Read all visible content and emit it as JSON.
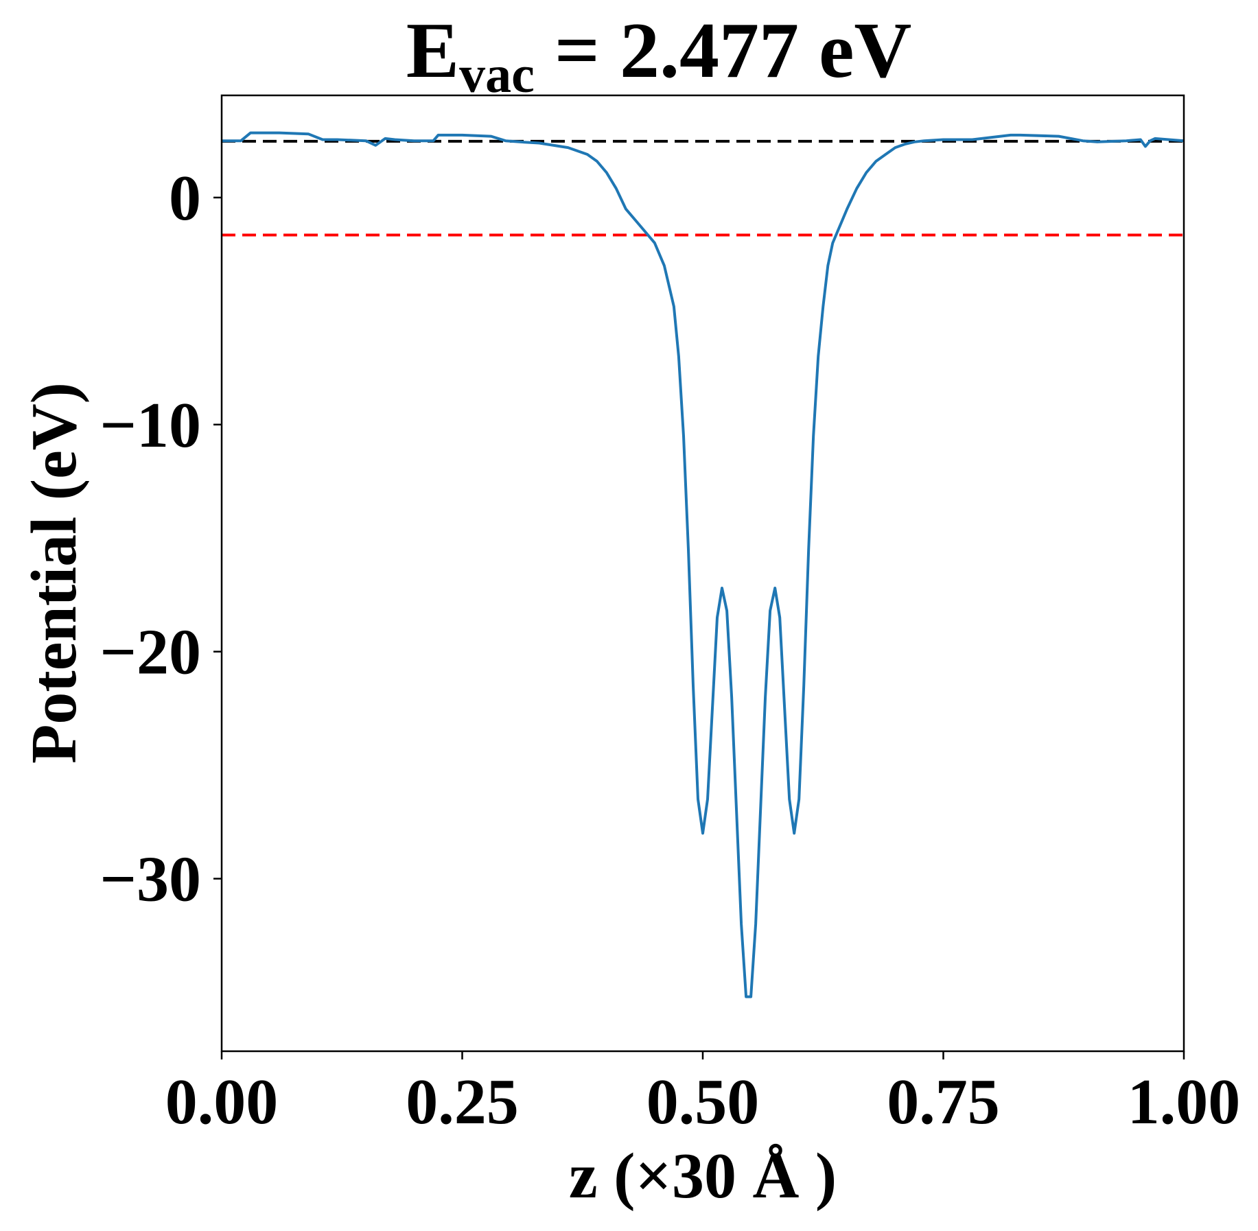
{
  "chart_data": {
    "type": "line",
    "title": {
      "prefix": "E",
      "subscript": "vac",
      "suffix": " = 2.477 eV"
    },
    "xlabel": "z (×30 Å )",
    "ylabel": "Potential (eV)",
    "xlim": [
      0.0,
      1.0
    ],
    "ylim": [
      -37.6,
      4.5
    ],
    "x_ticks": [
      {
        "value": 0.0,
        "label": "0.00"
      },
      {
        "value": 0.25,
        "label": "0.25"
      },
      {
        "value": 0.5,
        "label": "0.50"
      },
      {
        "value": 0.75,
        "label": "0.75"
      },
      {
        "value": 1.0,
        "label": "1.00"
      }
    ],
    "y_ticks": [
      {
        "value": 0,
        "label": "0"
      },
      {
        "value": -10,
        "label": "−10"
      },
      {
        "value": -20,
        "label": "−20"
      },
      {
        "value": -30,
        "label": "−30"
      }
    ],
    "grid": false,
    "reference_lines": [
      {
        "axis": "y",
        "value": 2.477,
        "color": "#000000",
        "style": "dashed"
      },
      {
        "axis": "y",
        "value": -1.65,
        "color": "#ff0000",
        "style": "dashed"
      }
    ],
    "series": [
      {
        "color": "#1f77b4",
        "x": [
          0.0,
          0.02,
          0.03,
          0.06,
          0.09,
          0.105,
          0.12,
          0.15,
          0.16,
          0.17,
          0.18,
          0.2,
          0.22,
          0.225,
          0.25,
          0.28,
          0.295,
          0.31,
          0.33,
          0.36,
          0.38,
          0.39,
          0.4,
          0.41,
          0.42,
          0.43,
          0.44,
          0.45,
          0.46,
          0.47,
          0.475,
          0.48,
          0.485,
          0.49,
          0.495,
          0.5,
          0.505,
          0.51,
          0.515,
          0.52,
          0.525,
          0.53,
          0.535,
          0.54,
          0.545,
          0.55,
          0.555,
          0.56,
          0.565,
          0.57,
          0.575,
          0.58,
          0.585,
          0.59,
          0.595,
          0.6,
          0.605,
          0.61,
          0.615,
          0.62,
          0.625,
          0.63,
          0.635,
          0.64,
          0.645,
          0.65,
          0.66,
          0.67,
          0.68,
          0.69,
          0.7,
          0.71,
          0.72,
          0.73,
          0.75,
          0.78,
          0.82,
          0.83,
          0.87,
          0.895,
          0.91,
          0.94,
          0.955,
          0.96,
          0.965,
          0.97,
          1.0
        ],
        "y": [
          2.5,
          2.5,
          2.85,
          2.85,
          2.8,
          2.55,
          2.55,
          2.5,
          2.3,
          2.6,
          2.55,
          2.5,
          2.5,
          2.75,
          2.75,
          2.7,
          2.5,
          2.45,
          2.4,
          2.2,
          1.9,
          1.6,
          1.1,
          0.4,
          -0.5,
          -1.0,
          -1.5,
          -2.0,
          -3.0,
          -4.8,
          -7.0,
          -10.5,
          -15.5,
          -21.5,
          -26.5,
          -28.0,
          -26.5,
          -22.5,
          -18.5,
          -17.2,
          -18.2,
          -22.0,
          -27.0,
          -32.0,
          -35.2,
          -35.2,
          -32.0,
          -27.0,
          -22.0,
          -18.2,
          -17.2,
          -18.5,
          -22.5,
          -26.5,
          -28.0,
          -26.5,
          -21.5,
          -15.5,
          -10.5,
          -7.0,
          -4.8,
          -3.0,
          -2.0,
          -1.5,
          -1.0,
          -0.5,
          0.4,
          1.1,
          1.6,
          1.9,
          2.2,
          2.35,
          2.45,
          2.5,
          2.55,
          2.55,
          2.75,
          2.75,
          2.7,
          2.5,
          2.45,
          2.5,
          2.55,
          2.25,
          2.5,
          2.6,
          2.5
        ]
      }
    ]
  },
  "colors": {
    "line": "#1f77b4",
    "vacuum_line": "#000000",
    "fermi_line": "#ff0000"
  }
}
